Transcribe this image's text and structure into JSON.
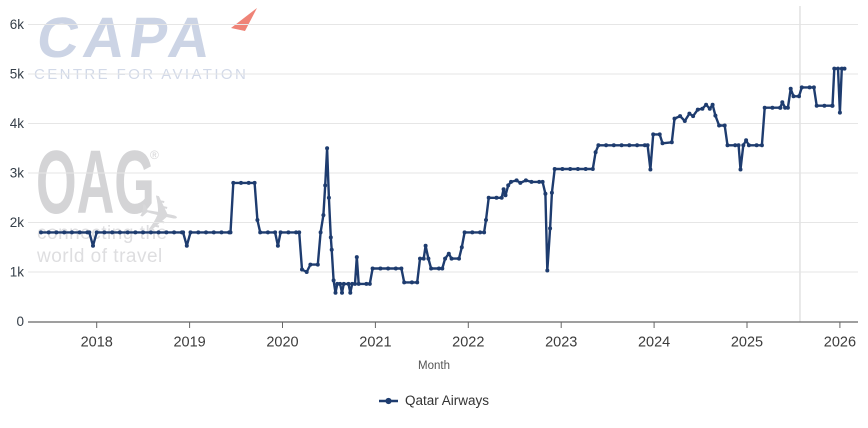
{
  "watermarks": {
    "capa": {
      "text": "CAPA",
      "subtitle": "CENTRE FOR AVIATION",
      "letters_color": "#ccd4e5",
      "arrow_color": "#ef8377"
    },
    "oag": {
      "text": "OAG",
      "registered_mark": "®",
      "tagline_line1": "connecting the",
      "tagline_line2": "world of travel",
      "letters_color": "#d4d4d6",
      "plane_icon": "airplane"
    }
  },
  "colors": {
    "series_line": "#1e3c6f",
    "grid": "#e6e6e6",
    "axis_line": "#666666",
    "x_tick_label": "#3c3c3c",
    "y_tick_label": "#37404a",
    "axis_title": "#555555",
    "current_date_marker_line": "#e2e2e2"
  },
  "legend": {
    "items": [
      {
        "label": "Qatar Airways",
        "color": "#1e3c6f"
      }
    ]
  },
  "chart_data": {
    "type": "line",
    "title": "",
    "xlabel": "Month",
    "ylabel": "",
    "grid": "horizontal",
    "legend_position": "bottom-center",
    "x_tick_labels": [
      "2018",
      "2019",
      "2020",
      "2021",
      "2022",
      "2023",
      "2024",
      "2025",
      "2026"
    ],
    "x_tick_years": [
      2018,
      2019,
      2020,
      2021,
      2022,
      2023,
      2024,
      2025,
      2026
    ],
    "y_tick_labels": [
      "0",
      "1k",
      "2k",
      "3k",
      "4k",
      "5k",
      "6k"
    ],
    "y_tick_values": [
      0,
      1000,
      2000,
      3000,
      4000,
      5000,
      6000
    ],
    "ylim": [
      0,
      6000
    ],
    "xlim_years": [
      2017.26,
      2026.19
    ],
    "current_date_marker_year": 2025.57,
    "series": [
      {
        "name": "Qatar Airways",
        "color": "#1e3c6f",
        "points": [
          [
            2017.4,
            1800
          ],
          [
            2017.92,
            1800
          ],
          [
            2017.96,
            1530
          ],
          [
            2018.0,
            1800
          ],
          [
            2018.93,
            1800
          ],
          [
            2018.97,
            1530
          ],
          [
            2019.01,
            1800
          ],
          [
            2019.44,
            1800
          ],
          [
            2019.47,
            2800
          ],
          [
            2019.7,
            2800
          ],
          [
            2019.73,
            2050
          ],
          [
            2019.76,
            1800
          ],
          [
            2019.92,
            1800
          ],
          [
            2019.95,
            1530
          ],
          [
            2019.98,
            1800
          ],
          [
            2020.18,
            1800
          ],
          [
            2020.21,
            1050
          ],
          [
            2020.26,
            1000
          ],
          [
            2020.3,
            1150
          ],
          [
            2020.38,
            1150
          ],
          [
            2020.41,
            1800
          ],
          [
            2020.44,
            2150
          ],
          [
            2020.46,
            2750
          ],
          [
            2020.48,
            3500
          ],
          [
            2020.5,
            2500
          ],
          [
            2020.52,
            1700
          ],
          [
            2020.53,
            1450
          ],
          [
            2020.55,
            830
          ],
          [
            2020.57,
            580
          ],
          [
            2020.59,
            760
          ],
          [
            2020.62,
            760
          ],
          [
            2020.64,
            580
          ],
          [
            2020.66,
            760
          ],
          [
            2020.71,
            760
          ],
          [
            2020.73,
            580
          ],
          [
            2020.75,
            760
          ],
          [
            2020.78,
            760
          ],
          [
            2020.8,
            1300
          ],
          [
            2020.82,
            760
          ],
          [
            2020.94,
            760
          ],
          [
            2020.97,
            1070
          ],
          [
            2021.28,
            1070
          ],
          [
            2021.31,
            790
          ],
          [
            2021.45,
            790
          ],
          [
            2021.48,
            1270
          ],
          [
            2021.52,
            1270
          ],
          [
            2021.54,
            1530
          ],
          [
            2021.57,
            1270
          ],
          [
            2021.6,
            1070
          ],
          [
            2021.72,
            1070
          ],
          [
            2021.75,
            1270
          ],
          [
            2021.79,
            1370
          ],
          [
            2021.82,
            1270
          ],
          [
            2021.9,
            1270
          ],
          [
            2021.93,
            1500
          ],
          [
            2021.96,
            1800
          ],
          [
            2022.17,
            1800
          ],
          [
            2022.19,
            2050
          ],
          [
            2022.22,
            2500
          ],
          [
            2022.36,
            2500
          ],
          [
            2022.38,
            2670
          ],
          [
            2022.4,
            2550
          ],
          [
            2022.43,
            2750
          ],
          [
            2022.46,
            2820
          ],
          [
            2022.52,
            2850
          ],
          [
            2022.56,
            2800
          ],
          [
            2022.62,
            2850
          ],
          [
            2022.68,
            2820
          ],
          [
            2022.8,
            2820
          ],
          [
            2022.83,
            2580
          ],
          [
            2022.85,
            1030
          ],
          [
            2022.88,
            1880
          ],
          [
            2022.9,
            2600
          ],
          [
            2022.93,
            3080
          ],
          [
            2023.34,
            3080
          ],
          [
            2023.37,
            3420
          ],
          [
            2023.4,
            3560
          ],
          [
            2023.93,
            3560
          ],
          [
            2023.96,
            3070
          ],
          [
            2023.99,
            3780
          ],
          [
            2024.06,
            3780
          ],
          [
            2024.09,
            3600
          ],
          [
            2024.19,
            3620
          ],
          [
            2024.22,
            4100
          ],
          [
            2024.28,
            4150
          ],
          [
            2024.33,
            4050
          ],
          [
            2024.38,
            4200
          ],
          [
            2024.42,
            4150
          ],
          [
            2024.47,
            4280
          ],
          [
            2024.52,
            4300
          ],
          [
            2024.56,
            4380
          ],
          [
            2024.6,
            4300
          ],
          [
            2024.63,
            4380
          ],
          [
            2024.66,
            4160
          ],
          [
            2024.7,
            3960
          ],
          [
            2024.76,
            3960
          ],
          [
            2024.79,
            3560
          ],
          [
            2024.91,
            3560
          ],
          [
            2024.93,
            3070
          ],
          [
            2024.96,
            3560
          ],
          [
            2024.99,
            3660
          ],
          [
            2025.02,
            3560
          ],
          [
            2025.16,
            3560
          ],
          [
            2025.19,
            4320
          ],
          [
            2025.36,
            4320
          ],
          [
            2025.38,
            4430
          ],
          [
            2025.41,
            4320
          ],
          [
            2025.44,
            4320
          ],
          [
            2025.47,
            4700
          ],
          [
            2025.5,
            4550
          ],
          [
            2025.56,
            4550
          ],
          [
            2025.59,
            4730
          ],
          [
            2025.72,
            4730
          ],
          [
            2025.75,
            4360
          ],
          [
            2025.92,
            4360
          ],
          [
            2025.94,
            5110
          ],
          [
            2025.98,
            5110
          ],
          [
            2026.0,
            4220
          ],
          [
            2026.02,
            5110
          ],
          [
            2026.05,
            5110
          ]
        ]
      }
    ]
  }
}
